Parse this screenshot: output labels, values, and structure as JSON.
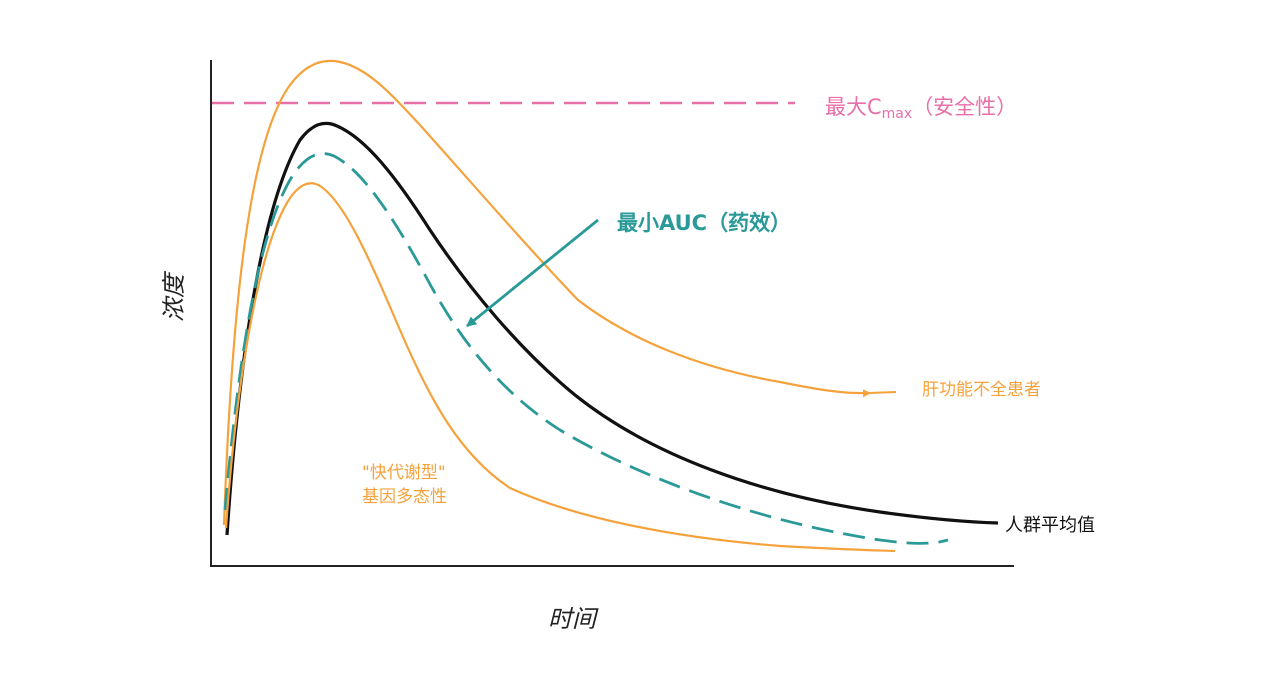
{
  "axes": {
    "y_label": "浓度",
    "x_label": "时间"
  },
  "annotations": {
    "cmax_prefix": "最大C",
    "cmax_sub": "max",
    "cmax_suffix": "（安全性）",
    "min_auc": "最小AUC（药效）",
    "hepatic": "肝功能不全患者",
    "fast_metabolizer_line1": "\"快代谢型\"",
    "fast_metabolizer_line2": "基因多态性",
    "population_mean": "人群平均值"
  },
  "colors": {
    "orange": "#F5A23C",
    "pink": "#E86FA8",
    "teal": "#2A9A98",
    "black": "#111111",
    "axis": "#222222"
  }
}
